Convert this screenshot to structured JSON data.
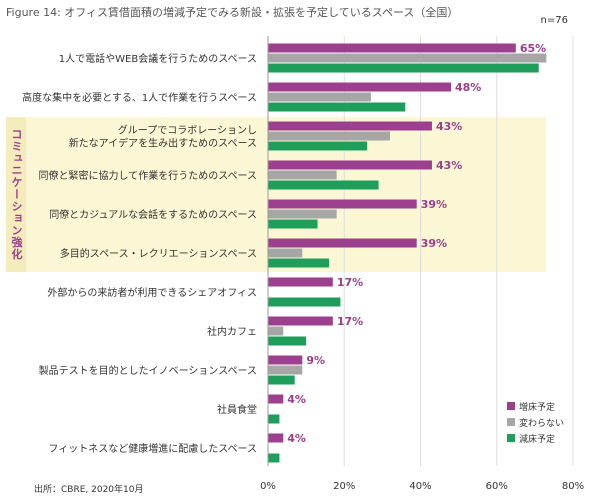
{
  "figure_title": "Figure 14: オフィス賃借面積の増減予定でみる新設・拡張を予定しているスペース（全国）",
  "sample_size": "n=76",
  "source": "出所：CBRE, 2020年10月",
  "group_label": "コミュニケーション強化",
  "colors": {
    "increase": "#9b3f8e",
    "same": "#a6a6a6",
    "decrease": "#1e9e5a",
    "highlight": "#fbf6d4",
    "grid": "#dddddd",
    "value_label": "#9b3f8e"
  },
  "chart_data": {
    "type": "bar",
    "orientation": "horizontal",
    "categories": [
      "1人で電話やWEB会議を行うためのスペース",
      "高度な集中を必要とする、1人で作業を行うスペース",
      "グループでコラボレーションし\n新たなアイデアを生み出すためのスペース",
      "同僚と緊密に協力して作業を行うためのスペース",
      "同僚とカジュアルな会話をするためのスペース",
      "多目的スペース・レクリエーションスペース",
      "外部からの来訪者が利用できるシェアオフィス",
      "社内カフェ",
      "製品テストを目的としたイノベーションスペース",
      "社員食堂",
      "フィットネスなど健康増進に配慮したスペース"
    ],
    "series": [
      {
        "name": "増床予定",
        "key": "increase",
        "values": [
          65,
          48,
          43,
          43,
          39,
          39,
          17,
          17,
          9,
          4,
          4
        ]
      },
      {
        "name": "変わらない",
        "key": "same",
        "values": [
          73,
          27,
          32,
          18,
          18,
          9,
          0,
          4,
          9,
          0,
          0
        ]
      },
      {
        "name": "減床予定",
        "key": "decrease",
        "values": [
          71,
          36,
          26,
          29,
          13,
          16,
          19,
          10,
          7,
          3,
          3
        ]
      }
    ],
    "value_labels": [
      "65%",
      "48%",
      "43%",
      "43%",
      "39%",
      "39%",
      "17%",
      "17%",
      "9%",
      "4%",
      "4%"
    ],
    "x_ticks": [
      "0%",
      "20%",
      "40%",
      "60%",
      "80%"
    ],
    "xlim": [
      0,
      80
    ],
    "highlighted_categories": [
      2,
      3,
      4,
      5
    ],
    "grid": true,
    "legend_position": "bottom-right"
  }
}
